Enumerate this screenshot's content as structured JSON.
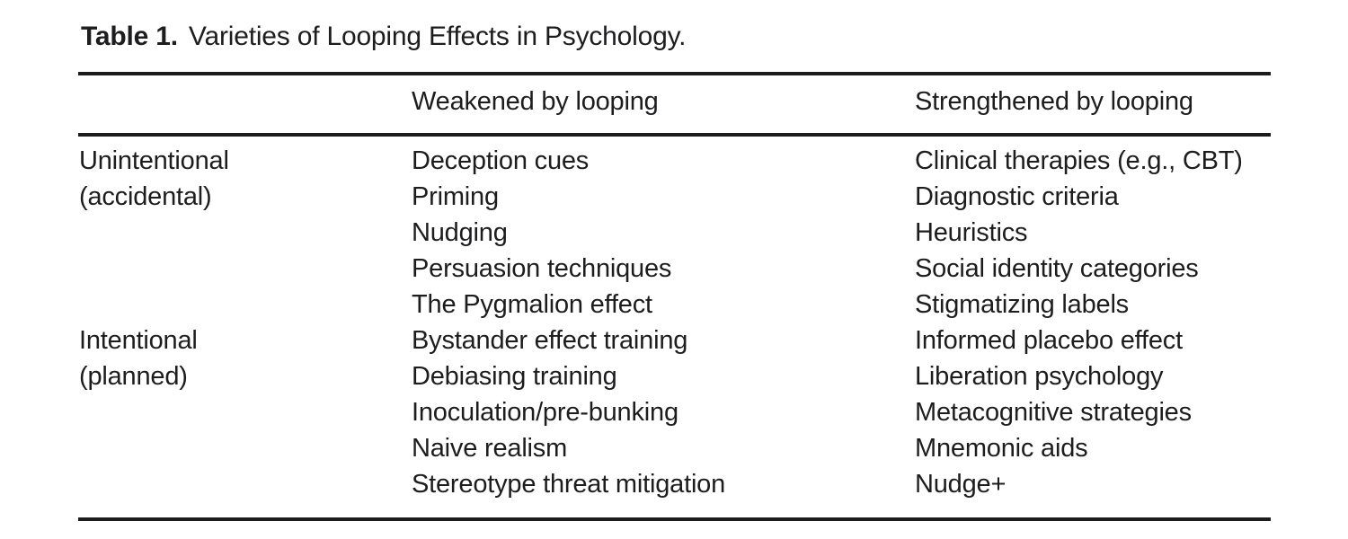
{
  "colors": {
    "background": "#ffffff",
    "text": "#1d1d1f",
    "rule": "#1c1c1c"
  },
  "table": {
    "title_label": "Table 1.",
    "title": "Varieties of Looping Effects in Psychology.",
    "headers": {
      "group": "",
      "weakened": "Weakened by looping",
      "strengthened": "Strengthened by looping"
    },
    "rows": [
      {
        "c1": "Unintentional",
        "c2": "Deception cues",
        "c3": "Clinical therapies (e.g., CBT)"
      },
      {
        "c1": "(accidental)",
        "c2": "Priming",
        "c3": "Diagnostic criteria"
      },
      {
        "c1": "",
        "c2": "Nudging",
        "c3": "Heuristics"
      },
      {
        "c1": "",
        "c2": "Persuasion techniques",
        "c3": "Social identity categories"
      },
      {
        "c1": "",
        "c2": "The Pygmalion effect",
        "c3": "Stigmatizing labels"
      },
      {
        "c1": "Intentional",
        "c2": "Bystander effect training",
        "c3": "Informed placebo effect"
      },
      {
        "c1": "(planned)",
        "c2": "Debiasing training",
        "c3": "Liberation psychology"
      },
      {
        "c1": "",
        "c2": "Inoculation/pre-bunking",
        "c3": "Metacognitive strategies"
      },
      {
        "c1": "",
        "c2": "Naive realism",
        "c3": "Mnemonic aids"
      },
      {
        "c1": "",
        "c2": "Stereotype threat mitigation",
        "c3": "Nudge+"
      }
    ]
  }
}
